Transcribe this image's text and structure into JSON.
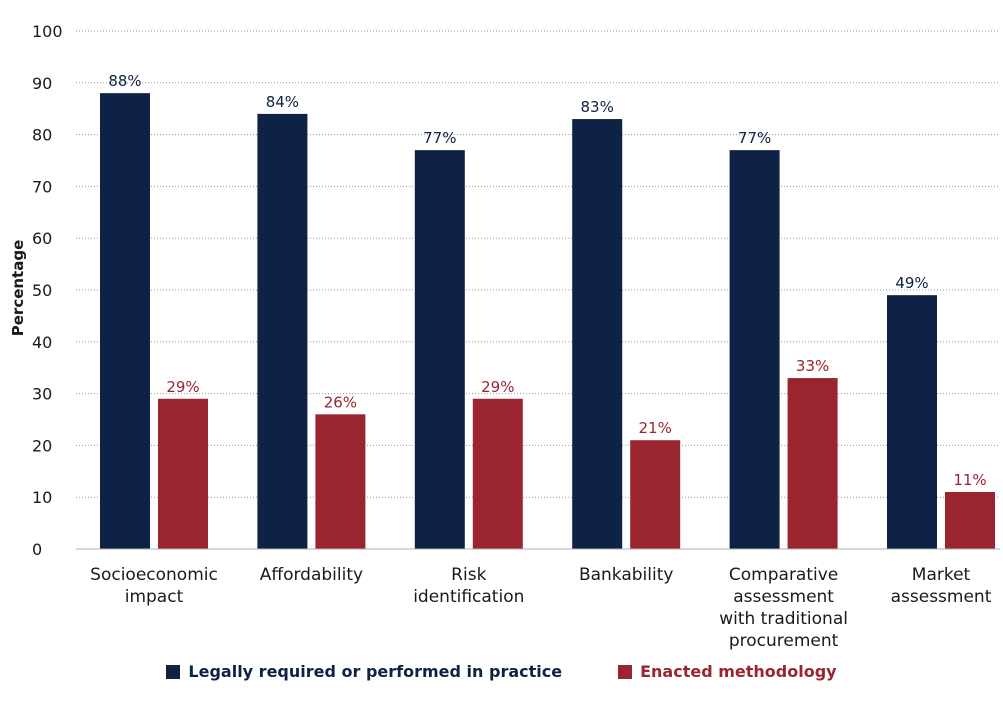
{
  "chart_data": {
    "type": "bar",
    "title": "",
    "xlabel": "",
    "ylabel": "Percentage",
    "ylim": [
      0,
      100
    ],
    "yticks": [
      0,
      10,
      20,
      30,
      40,
      50,
      60,
      70,
      80,
      90,
      100
    ],
    "grid": true,
    "legend_position": "bottom",
    "categories": [
      [
        "Socioeconomic",
        "impact"
      ],
      [
        "Affordability"
      ],
      [
        "Risk",
        "identification"
      ],
      [
        "Bankability"
      ],
      [
        "Comparative",
        "assessment",
        "with traditional",
        "procurement"
      ],
      [
        "Market",
        "assessment"
      ]
    ],
    "series": [
      {
        "name": "Legally required or performed in practice",
        "color": "#0d2244",
        "values": [
          88,
          84,
          77,
          83,
          77,
          49
        ],
        "labels": [
          "88%",
          "84%",
          "77%",
          "83%",
          "77%",
          "49%"
        ]
      },
      {
        "name": "Enacted methodology",
        "color": "#9a252e",
        "values": [
          29,
          26,
          29,
          21,
          33,
          11
        ],
        "labels": [
          "29%",
          "26%",
          "29%",
          "21%",
          "33%",
          "11%"
        ]
      }
    ]
  }
}
